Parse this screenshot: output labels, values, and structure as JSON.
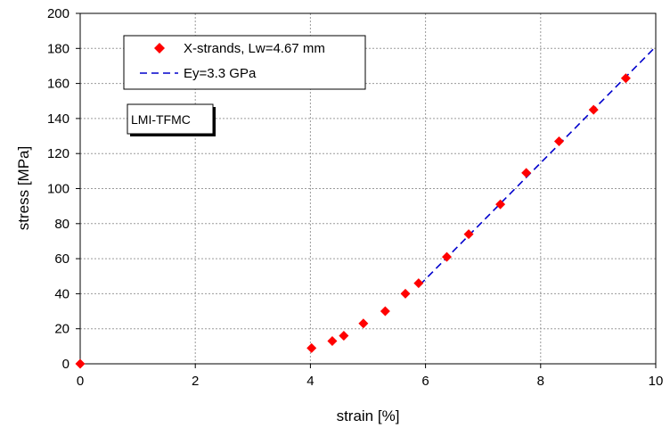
{
  "chart_data": {
    "type": "scatter",
    "xlabel": "strain [%]",
    "ylabel": "stress [MPa]",
    "xlim": [
      0,
      10
    ],
    "ylim": [
      0,
      200
    ],
    "x_ticks": [
      0,
      2,
      4,
      6,
      8,
      10
    ],
    "y_ticks": [
      0,
      20,
      40,
      60,
      80,
      100,
      120,
      140,
      160,
      180,
      200
    ],
    "grid": true,
    "legend_position": "top-left",
    "series": [
      {
        "name": "X-strands, Lw=4.67 mm",
        "kind": "scatter",
        "marker": "diamond",
        "color": "#ff0000",
        "points": [
          [
            0.0,
            0
          ],
          [
            4.02,
            9
          ],
          [
            4.38,
            13
          ],
          [
            4.58,
            16
          ],
          [
            4.92,
            23
          ],
          [
            5.3,
            30
          ],
          [
            5.65,
            40
          ],
          [
            5.88,
            46
          ],
          [
            6.37,
            61
          ],
          [
            6.75,
            74
          ],
          [
            7.3,
            91
          ],
          [
            7.75,
            109
          ],
          [
            8.32,
            127
          ],
          [
            8.92,
            145
          ],
          [
            9.48,
            163
          ]
        ]
      },
      {
        "name": "Ey=3.3 GPa",
        "kind": "line",
        "style": "dashed",
        "color": "#0000cc",
        "points": [
          [
            5.9,
            45
          ],
          [
            10.0,
            181
          ]
        ]
      }
    ],
    "annotations": [
      "LMI-TFMC"
    ]
  }
}
